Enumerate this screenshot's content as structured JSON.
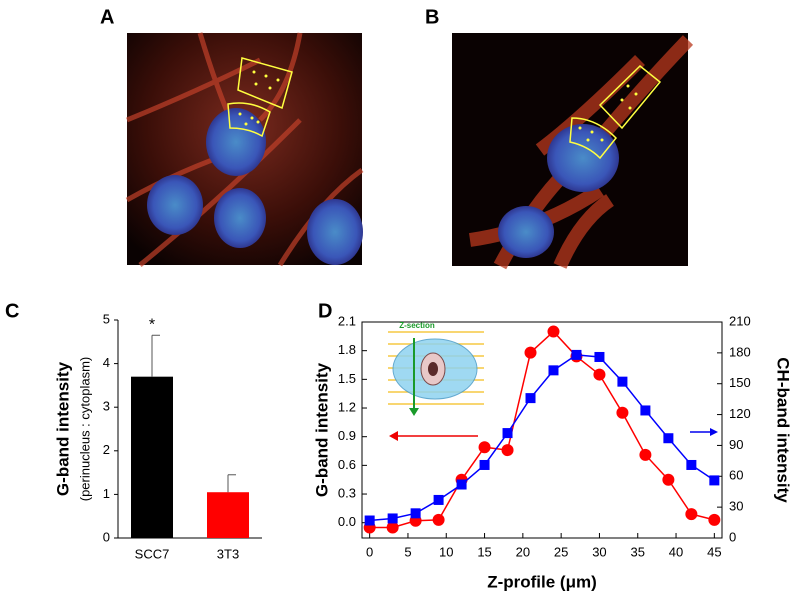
{
  "panel_labels": [
    "A",
    "B",
    "C",
    "D"
  ],
  "chart_data": [
    {
      "type": "bar",
      "ylabel": "G-band intensity",
      "ylabel_sub": "(perinucleus : cytoplasm)",
      "categories": [
        "SCC7",
        "3T3"
      ],
      "values": [
        3.7,
        1.05
      ],
      "errors": [
        0.95,
        0.4
      ],
      "colors": [
        "#000000",
        "#ff0000"
      ],
      "annotation": "*",
      "ylim": [
        0,
        5
      ],
      "yticks": [
        0,
        1,
        2,
        3,
        4,
        5
      ]
    },
    {
      "type": "line",
      "xlabel": "Z-profile (μm)",
      "ylabel": "G-band intensity",
      "y2label": "CH-band intensity",
      "annotation": "Z-section",
      "x": [
        0,
        3,
        6,
        9,
        12,
        15,
        18,
        21,
        24,
        27,
        30,
        33,
        36,
        39,
        42,
        45
      ],
      "xlim": [
        -1,
        46
      ],
      "xticks": [
        0,
        5,
        10,
        15,
        20,
        25,
        30,
        35,
        40,
        45
      ],
      "ylim": [
        -0.16,
        2.1
      ],
      "yticks": [
        {
          "value": 0,
          "label": "0.0"
        },
        0.3,
        0.6,
        0.9,
        1.2,
        1.5,
        1.8,
        2.1
      ],
      "y2lim": [
        0,
        210
      ],
      "y2ticks": [
        0,
        30,
        60,
        90,
        120,
        150,
        180,
        210
      ],
      "series": [
        {
          "color": "#ff0000",
          "marker": "circle",
          "values": [
            -0.05,
            -0.05,
            0.02,
            0.03,
            0.45,
            0.79,
            0.76,
            1.78,
            2.0,
            1.74,
            1.55,
            1.15,
            0.71,
            0.45,
            0.09,
            0.03
          ]
        },
        {
          "color": "#0000ff",
          "marker": "square",
          "axis": "y2",
          "values": [
            17,
            19,
            24,
            37,
            52,
            71,
            102,
            136,
            163,
            178,
            176,
            152,
            124,
            97,
            71,
            56
          ]
        }
      ]
    }
  ]
}
